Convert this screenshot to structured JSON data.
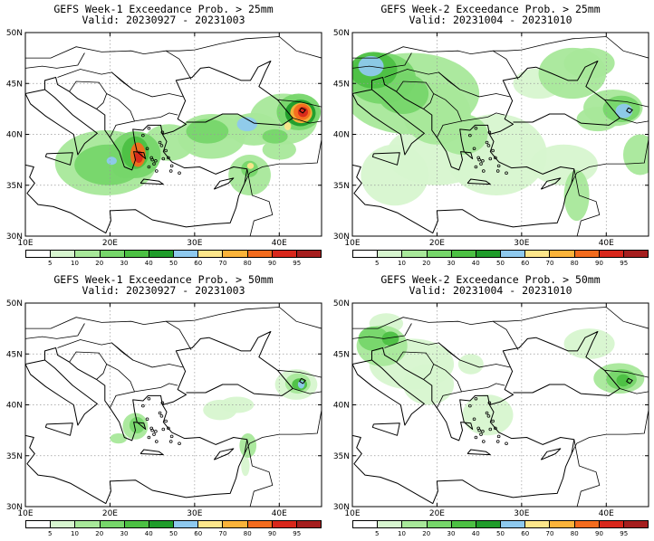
{
  "panels": [
    {
      "id": "p1",
      "title": "GEFS Week-1 Exceedance Prob. > 25mm",
      "valid": "Valid: 20230927 - 20231003"
    },
    {
      "id": "p2",
      "title": "GEFS Week-2 Exceedance Prob. > 25mm",
      "valid": "Valid: 20231004 - 20231010"
    },
    {
      "id": "p3",
      "title": "GEFS Week-1 Exceedance Prob. > 50mm",
      "valid": "Valid: 20230927 - 20231003"
    },
    {
      "id": "p4",
      "title": "GEFS Week-2 Exceedance Prob. > 50mm",
      "valid": "Valid: 20231004 - 20231010"
    }
  ],
  "map": {
    "lat_labels": [
      "50N",
      "45N",
      "40N",
      "35N",
      "30N"
    ],
    "lon_labels": [
      "10E",
      "20E",
      "30E",
      "40E"
    ],
    "lat_range": [
      30,
      50
    ],
    "lon_range": [
      10,
      45
    ]
  },
  "colorbar": {
    "colors": [
      "#ffffff",
      "#d7f5cf",
      "#a8e89a",
      "#76d66a",
      "#4cc043",
      "#1f9c2a",
      "#8ec9ee",
      "#fde68b",
      "#fbb33a",
      "#f36b1d",
      "#d8271b",
      "#a51e1e"
    ],
    "labels": [
      "5",
      "10",
      "20",
      "30",
      "40",
      "50",
      "60",
      "70",
      "80",
      "90",
      "95"
    ]
  }
}
